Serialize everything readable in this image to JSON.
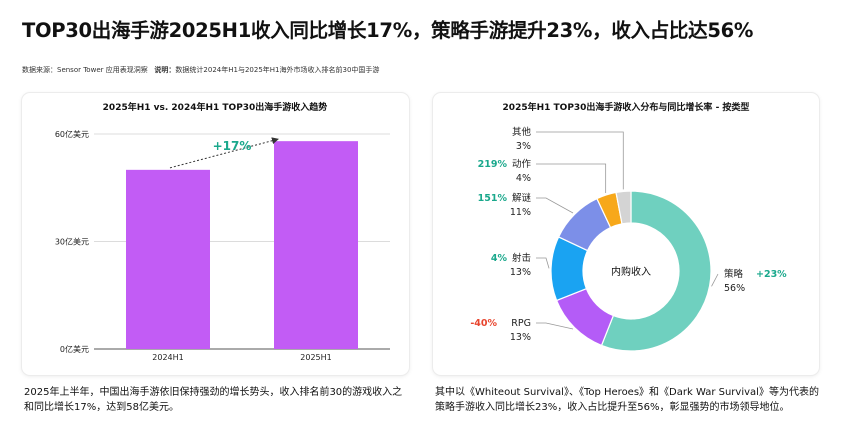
{
  "headline": "TOP30出海手游2025H1收入同比增长17%，策略手游提升23%，收入占比达56%",
  "source": {
    "label": "数据来源：Sensor Tower 应用表现洞察",
    "note_label": "说明：",
    "note": "数据统计2024年H1与2025年H1海外市场收入排名前30中国手游"
  },
  "colors": {
    "bar": "#c25cf5",
    "growth_positive": "#1aa88c",
    "growth_negative": "#e8452e",
    "grid": "#dcdcdc"
  },
  "chart_data": [
    {
      "type": "bar",
      "title": "2025年H1 vs. 2024年H1 TOP30出海手游收入趋势",
      "categories": [
        "2024H1",
        "2025H1"
      ],
      "values": [
        50,
        58
      ],
      "ylim": [
        0,
        60
      ],
      "yticks": [
        0,
        30,
        60
      ],
      "ytick_labels": [
        "0亿美元",
        "30亿美元",
        "60亿美元"
      ],
      "grid": true,
      "annotation": "+17%"
    },
    {
      "type": "pie",
      "title": "2025年H1 TOP30出海手游收入分布与同比增长率 - 按类型",
      "center_label": "内购收入",
      "slices": [
        {
          "name": "策略",
          "pct_label": "56%",
          "value": 56,
          "growth": "+23%",
          "color": "#6fd0bf"
        },
        {
          "name": "RPG",
          "pct_label": "13%",
          "value": 13,
          "growth": "-40%",
          "color": "#b45cf7"
        },
        {
          "name": "射击",
          "pct_label": "13%",
          "value": 13,
          "growth": "4%",
          "color": "#1aa3f2"
        },
        {
          "name": "解谜",
          "pct_label": "11%",
          "value": 11,
          "growth": "151%",
          "color": "#7c8fe8"
        },
        {
          "name": "动作",
          "pct_label": "4%",
          "value": 4,
          "growth": "219%",
          "color": "#f7a81a"
        },
        {
          "name": "其他",
          "pct_label": "3%",
          "value": 3,
          "growth": "",
          "color": "#d4d4d4"
        }
      ]
    }
  ],
  "footer": {
    "left": "2025年上半年，中国出海手游依旧保持强劲的增长势头，收入排名前30的游戏收入之和同比增长17%，达到58亿美元。",
    "right": "其中以《Whiteout Survival》、《Top Heroes》和《Dark War Survival》等为代表的策略手游收入同比增长23%，收入占比提升至56%，彰显强势的市场领导地位。"
  }
}
